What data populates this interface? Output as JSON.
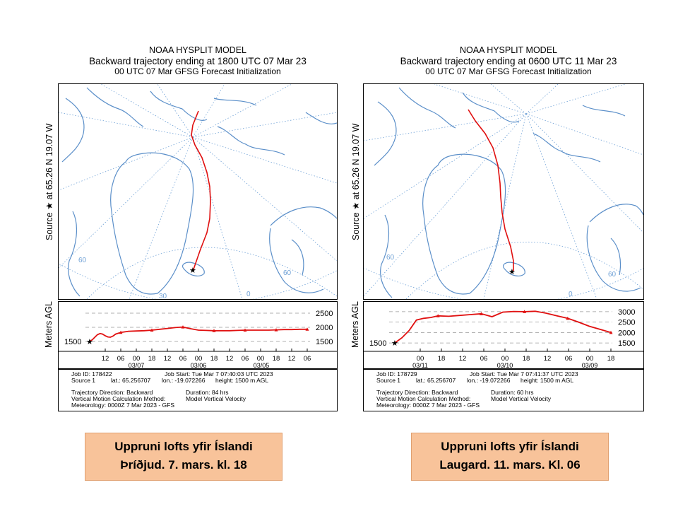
{
  "left": {
    "header": {
      "model": "NOAA HYSPLIT MODEL",
      "title": "Backward trajectory ending at 1800 UTC 07 Mar 23",
      "subtitle": "00 UTC 07 Mar    GFSG  Forecast Initialization"
    },
    "source_label": "Source ★ at   65.26 N   19.07 W",
    "map": {
      "lat_labels": [
        "60",
        "30",
        "60",
        "0"
      ]
    },
    "height_axis_label": "Meters AGL",
    "chart_data": {
      "type": "line",
      "y_ticks": [
        1500,
        2000,
        2500
      ],
      "y_tick_labels": [
        "1500",
        "2000",
        "2500"
      ],
      "y_start_label": "1500",
      "x_tick_labels": [
        "12",
        "06",
        "00",
        "18",
        "12",
        "06",
        "00",
        "18",
        "12",
        "06",
        "00",
        "18",
        "12",
        "06"
      ],
      "date_labels": [
        "03/07",
        "03/06",
        "03/05"
      ],
      "ylim": [
        1300,
        2700
      ],
      "x_hours_back": [
        0,
        1,
        2,
        3,
        4,
        5,
        6,
        7,
        8,
        9,
        10,
        12,
        15,
        18,
        21,
        24,
        27,
        30,
        33,
        36,
        39,
        42,
        45,
        48,
        51,
        54,
        57,
        60,
        63,
        66,
        69,
        72,
        75,
        78,
        81,
        84
      ],
      "height_m": [
        1500,
        1560,
        1650,
        1740,
        1780,
        1760,
        1700,
        1660,
        1650,
        1690,
        1760,
        1820,
        1860,
        1870,
        1880,
        1900,
        1930,
        1960,
        1990,
        2010,
        1950,
        1900,
        1890,
        1880,
        1880,
        1880,
        1890,
        1900,
        1900,
        1900,
        1900,
        1910,
        1920,
        1920,
        1930,
        1930
      ]
    },
    "info": {
      "job_id": "Job ID: 178422",
      "job_start": "Job Start: Tue Mar  7 07:40:03 UTC 2023",
      "source": "Source 1",
      "lat": "lat.: 65.256707",
      "lon": "lon.: -19.072266",
      "height": "height: 1500 m AGL",
      "direction": "Trajectory Direction: Backward",
      "duration": "Duration: 84 hrs",
      "vertical": "Vertical Motion Calculation Method:",
      "vertical_value": "Model Vertical Velocity",
      "meteorology": "Meteorology: 0000Z 7 Mar 2023 - GFS"
    },
    "caption": {
      "line1": "Uppruni lofts yfir Íslandi",
      "line2": "Þríðjud. 7. mars. kl. 18"
    }
  },
  "right": {
    "header": {
      "model": "NOAA HYSPLIT MODEL",
      "title": "Backward trajectory ending at 0600 UTC 11 Mar 23",
      "subtitle": "00 UTC 07 Mar    GFSG  Forecast Initialization"
    },
    "source_label": "Source ★ at   65.26 N   19.07 W",
    "map": {
      "lat_labels": [
        "60",
        "60",
        "0"
      ]
    },
    "height_axis_label": "Meters AGL",
    "chart_data": {
      "type": "line",
      "y_ticks": [
        1500,
        2000,
        2500,
        3000
      ],
      "y_tick_labels": [
        "1500",
        "2000",
        "2500",
        "3000"
      ],
      "y_start_label": "1500",
      "x_tick_labels": [
        "00",
        "18",
        "12",
        "06",
        "00",
        "18",
        "12",
        "06",
        "00",
        "18"
      ],
      "date_labels": [
        "03/11",
        "03/10",
        "03/09"
      ],
      "ylim": [
        1300,
        3200
      ],
      "x_hours_back": [
        0,
        2,
        4,
        6,
        8,
        10,
        12,
        15,
        18,
        21,
        24,
        27,
        30,
        33,
        36,
        39,
        42,
        45,
        48,
        51,
        54,
        57,
        60
      ],
      "height_m": [
        1500,
        1750,
        2100,
        2600,
        2680,
        2720,
        2800,
        2780,
        2820,
        2860,
        2900,
        2760,
        2980,
        3010,
        3000,
        3020,
        2930,
        2800,
        2680,
        2500,
        2300,
        2150,
        2000
      ]
    },
    "info": {
      "job_id": "Job ID: 178729",
      "job_start": "Job Start: Tue Mar  7 07:41:37 UTC 2023",
      "source": "Source 1",
      "lat": "lat.: 65.256707",
      "lon": "lon.: -19.072266",
      "height": "height: 1500 m AGL",
      "direction": "Trajectory Direction: Backward",
      "duration": "Duration: 60 hrs",
      "vertical": "Vertical Motion Calculation Method:",
      "vertical_value": "Model Vertical Velocity",
      "meteorology": "Meteorology: 0000Z 7 Mar 2023 - GFS"
    },
    "caption": {
      "line1": "Uppruni lofts yfir Íslandi",
      "line2": "Laugard. 11. mars. Kl. 06"
    }
  },
  "colors": {
    "trajectory": "#e01010",
    "coastline": "#5b8fc9",
    "grid": "#6fa1d6",
    "caption_bg": "#f8c39a"
  }
}
